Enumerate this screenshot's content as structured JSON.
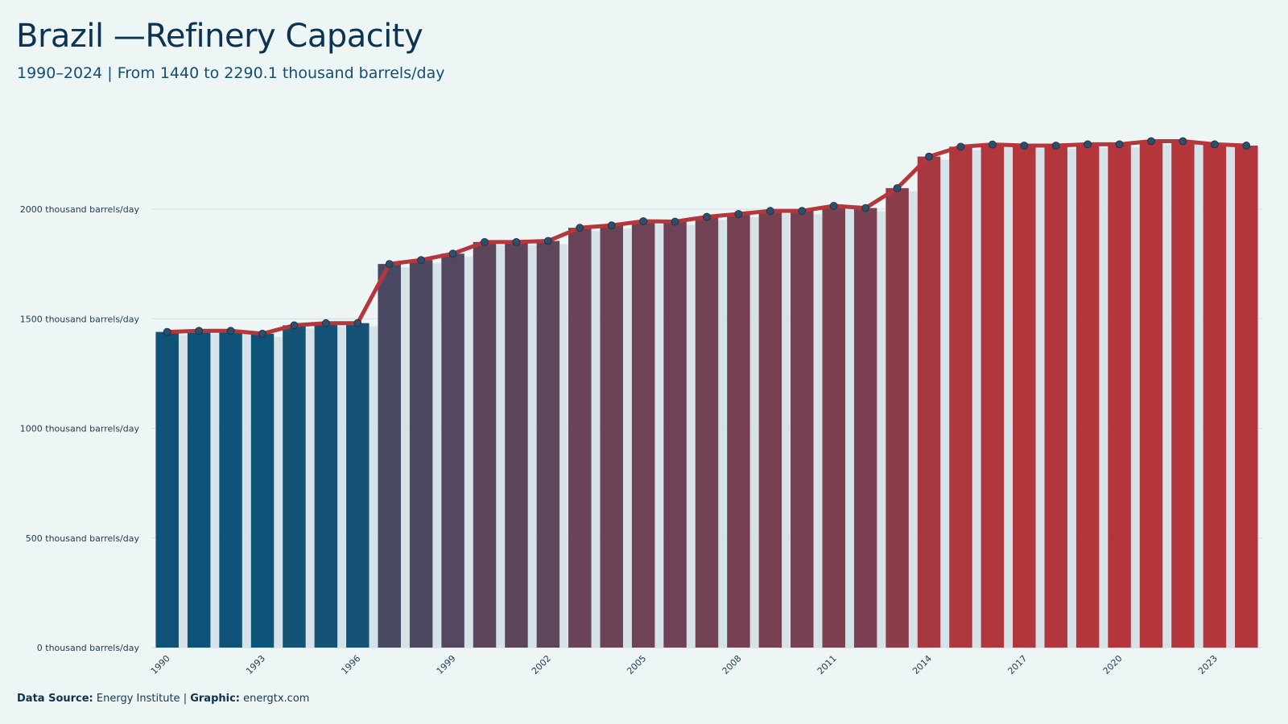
{
  "header": {
    "title": "Brazil —Refinery Capacity",
    "subtitle": "1990–2024 | From 1440 to 2290.1 thousand barrels/day"
  },
  "footer": {
    "source_label": "Data Source:",
    "source_value": "Energy Institute",
    "separator": "|",
    "graphic_label": "Graphic:",
    "graphic_value": "energtx.com"
  },
  "colors": {
    "start": "#0d5479",
    "end": "#b5363b",
    "line": "#b5363b",
    "marker": "#2d4f6c",
    "ghost_bar": "#d5e3e8",
    "grid": "#c9d3d6",
    "background": "#eef5f5"
  },
  "chart_data": {
    "type": "bar",
    "title": "Brazil —Refinery Capacity",
    "subtitle": "1990–2024 | From 1440 to 2290.1 thousand barrels/day",
    "unit": "thousand barrels/day",
    "xlabel": "",
    "ylabel": "",
    "ylim": [
      0,
      2450
    ],
    "yticks": [
      0,
      500,
      1000,
      1500,
      2000
    ],
    "ytick_labels": [
      "0 thousand barrels/day",
      "500 thousand barrels/day",
      "1000 thousand barrels/day",
      "1500 thousand barrels/day",
      "2000 thousand barrels/day"
    ],
    "xtick_labels": [
      "1990",
      "1993",
      "1996",
      "1999",
      "2002",
      "2005",
      "2008",
      "2011",
      "2014",
      "2017",
      "2020",
      "2023"
    ],
    "grid": true,
    "legend": "none",
    "categories": [
      "1990",
      "1991",
      "1992",
      "1993",
      "1994",
      "1995",
      "1996",
      "1997",
      "1998",
      "1999",
      "2000",
      "2001",
      "2002",
      "2003",
      "2004",
      "2005",
      "2006",
      "2007",
      "2008",
      "2009",
      "2010",
      "2011",
      "2012",
      "2013",
      "2014",
      "2015",
      "2016",
      "2017",
      "2018",
      "2019",
      "2020",
      "2021",
      "2022",
      "2023",
      "2024"
    ],
    "values": [
      1440,
      1445,
      1445,
      1432,
      1470,
      1480,
      1480,
      1750,
      1768,
      1797,
      1850,
      1850,
      1855,
      1915,
      1926,
      1945,
      1943,
      1965,
      1978,
      1992,
      1992,
      2015,
      2005,
      2096,
      2240,
      2285,
      2295,
      2290,
      2290,
      2296,
      2296,
      2310,
      2310,
      2296,
      2290.1
    ]
  }
}
